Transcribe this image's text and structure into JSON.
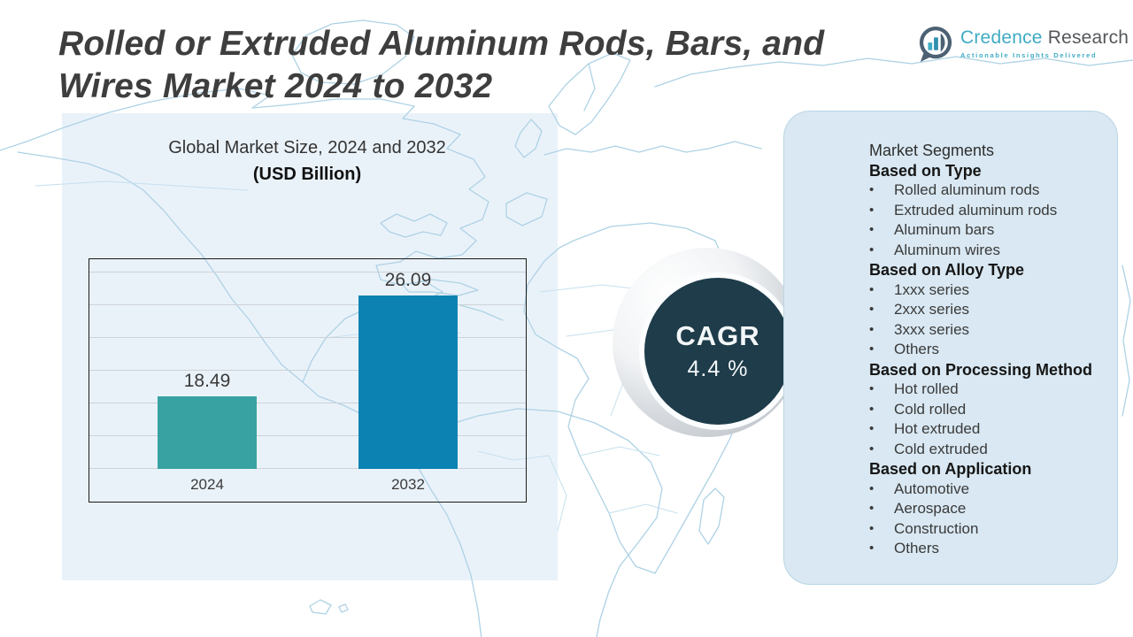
{
  "header": {
    "title_line1": "Rolled or Extruded Aluminum Rods, Bars, and",
    "title_line2": "Wires Market 2024 to 2032"
  },
  "logo": {
    "brand_primary": "Credence",
    "brand_secondary": "Research",
    "tagline": "Actionable Insights Delivered"
  },
  "chart_data": {
    "type": "bar",
    "title": "Global Market Size, 2024 and 2032",
    "subtitle": "(USD Billion)",
    "categories": [
      "2024",
      "2032"
    ],
    "values": [
      18.49,
      26.09
    ],
    "ylim": [
      13,
      29
    ],
    "grid": true,
    "colors": [
      "#38a2a2",
      "#0b82b2"
    ],
    "legend": "none"
  },
  "cagr": {
    "label": "CAGR",
    "value": "4.4 %"
  },
  "panel": {
    "title": "Market Segments",
    "groups": [
      {
        "header": "Based on Type",
        "items": [
          "Rolled aluminum rods",
          "Extruded aluminum rods",
          "Aluminum bars",
          "Aluminum wires"
        ]
      },
      {
        "header": "Based on Alloy Type",
        "items": [
          "1xxx series",
          "2xxx series",
          "3xxx series",
          "Others"
        ]
      },
      {
        "header": "Based on Processing Method",
        "items": [
          "Hot rolled",
          "Cold rolled",
          "Hot extruded",
          "Cold extruded"
        ]
      },
      {
        "header": "Based on Application",
        "items": [
          "Automotive",
          "Aerospace",
          "Construction",
          "Others"
        ]
      }
    ]
  },
  "colors": {
    "bar_2024": "#38a2a2",
    "bar_2032": "#0b82b2",
    "cagr_circle": "#1e3c4a",
    "panel_bg": "#d9e8f2",
    "canvas_tint": "#eaf2f9",
    "map_line": "#aed2e5",
    "title_text": "#3e3e3e",
    "brand_teal": "#3fabc4"
  }
}
